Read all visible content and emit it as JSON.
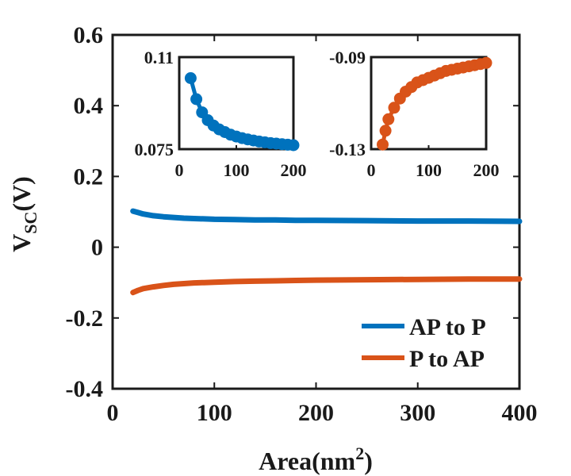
{
  "chart_data": {
    "type": "line",
    "xlabel": "Area(nm",
    "xlabel_sup": "2",
    "xlabel_close": ")",
    "ylabel": "V",
    "ylabel_sub": "SC",
    "ylabel_unit": "(V)",
    "xlim": [
      0,
      400
    ],
    "ylim": [
      -0.4,
      0.6
    ],
    "xticks": [
      "0",
      "100",
      "200",
      "300",
      "400"
    ],
    "yticks": [
      "-0.4",
      "-0.2",
      "0",
      "0.2",
      "0.4",
      "0.6"
    ],
    "grid": false,
    "legend": "bottom-right",
    "series": [
      {
        "name": "AP to P",
        "color": "#0072BD",
        "x": [
          20,
          25,
          30,
          40,
          50,
          60,
          70,
          80,
          90,
          100,
          120,
          140,
          160,
          180,
          200,
          250,
          300,
          350,
          400
        ],
        "y": [
          0.102,
          0.098,
          0.094,
          0.089,
          0.086,
          0.084,
          0.082,
          0.081,
          0.08,
          0.079,
          0.078,
          0.077,
          0.077,
          0.076,
          0.076,
          0.075,
          0.074,
          0.074,
          0.073
        ]
      },
      {
        "name": "P to AP",
        "color": "#D95319",
        "x": [
          20,
          25,
          30,
          40,
          50,
          60,
          70,
          80,
          90,
          100,
          120,
          140,
          160,
          180,
          200,
          250,
          300,
          350,
          400
        ],
        "y": [
          -0.128,
          -0.122,
          -0.117,
          -0.112,
          -0.108,
          -0.105,
          -0.103,
          -0.101,
          -0.1,
          -0.099,
          -0.097,
          -0.096,
          -0.095,
          -0.094,
          -0.093,
          -0.092,
          -0.091,
          -0.09,
          -0.09
        ]
      }
    ],
    "insets": [
      {
        "series": "AP to P",
        "color": "#0072BD",
        "xlim": [
          0,
          200
        ],
        "ylim": [
          0.075,
          0.11
        ],
        "xticks": [
          "0",
          "100",
          "200"
        ],
        "yticks": [
          "0.075",
          "0.11"
        ],
        "x": [
          20,
          30,
          40,
          50,
          60,
          70,
          80,
          90,
          100,
          110,
          120,
          130,
          140,
          150,
          160,
          170,
          180,
          190,
          200
        ],
        "y": [
          0.102,
          0.094,
          0.089,
          0.086,
          0.084,
          0.0825,
          0.0815,
          0.0805,
          0.0798,
          0.0792,
          0.0787,
          0.0783,
          0.0779,
          0.0776,
          0.0773,
          0.0771,
          0.0769,
          0.0767,
          0.0765
        ]
      },
      {
        "series": "P to AP",
        "color": "#D95319",
        "xlim": [
          0,
          200
        ],
        "ylim": [
          -0.13,
          -0.09
        ],
        "xticks": [
          "0",
          "100",
          "200"
        ],
        "yticks": [
          "-0.09",
          "-0.13"
        ],
        "x": [
          20,
          25,
          30,
          40,
          50,
          60,
          70,
          80,
          90,
          100,
          110,
          120,
          130,
          140,
          150,
          160,
          170,
          180,
          190,
          200
        ],
        "y": [
          -0.128,
          -0.122,
          -0.117,
          -0.112,
          -0.108,
          -0.105,
          -0.103,
          -0.101,
          -0.1,
          -0.099,
          -0.098,
          -0.097,
          -0.096,
          -0.0955,
          -0.095,
          -0.0945,
          -0.094,
          -0.0935,
          -0.093,
          -0.0925
        ]
      }
    ]
  }
}
